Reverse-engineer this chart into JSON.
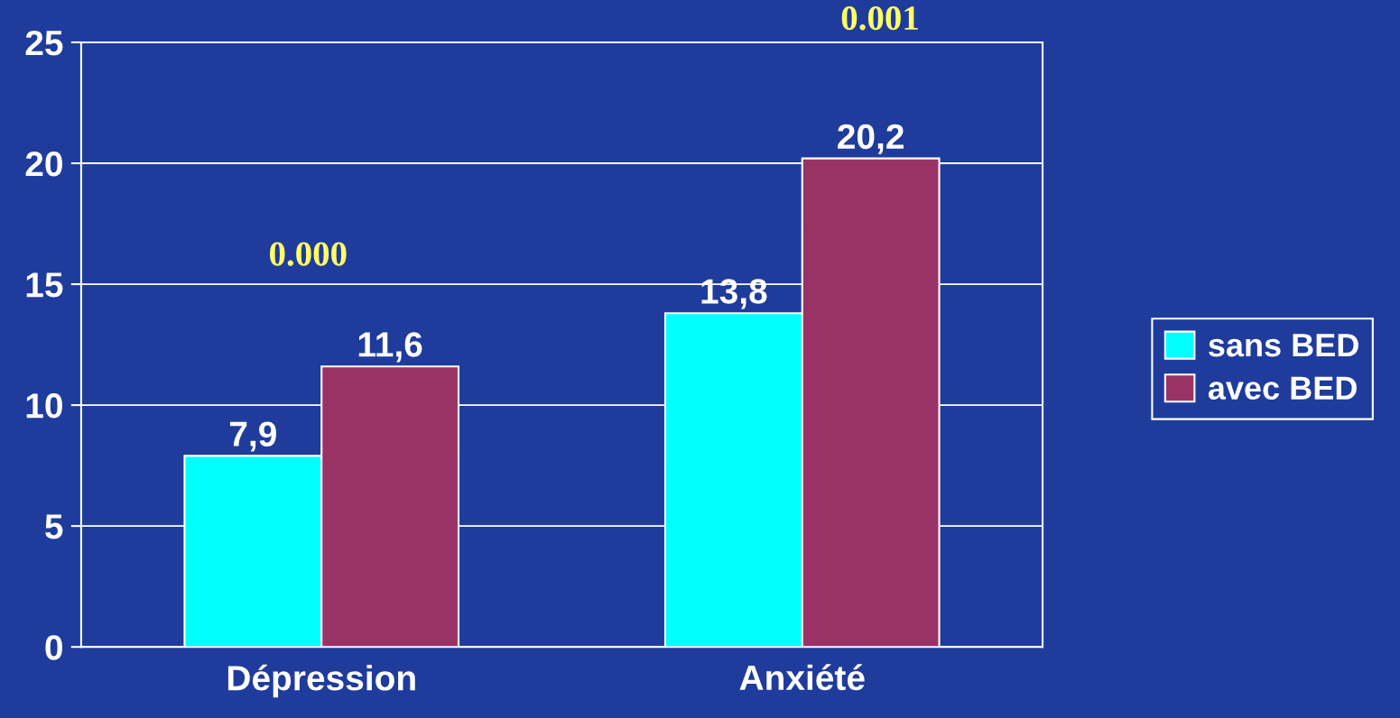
{
  "chart_data": {
    "type": "bar",
    "categories": [
      "Dépression",
      "Anxiété"
    ],
    "series": [
      {
        "name": "sans BED",
        "color": "#00ffff",
        "values": [
          7.9,
          13.8
        ],
        "value_labels": [
          "7,9",
          "13,8"
        ]
      },
      {
        "name": "avec BED",
        "color": "#993366",
        "values": [
          11.6,
          20.2
        ],
        "value_labels": [
          "11,6",
          "20,2"
        ]
      }
    ],
    "ylim": [
      0,
      25
    ],
    "yticks": [
      0,
      5,
      10,
      15,
      20,
      25
    ],
    "grid": "y",
    "legend": "right",
    "annotations": [
      "0.000",
      "0.001"
    ]
  }
}
